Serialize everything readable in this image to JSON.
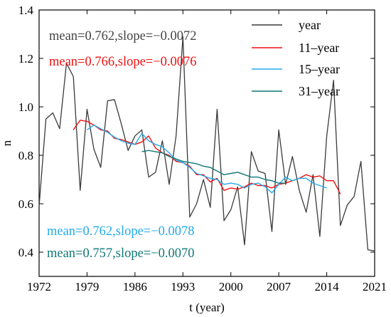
{
  "chart_data": {
    "type": "line",
    "xlabel": "t (year)",
    "ylabel": "n",
    "xlim": [
      1972,
      2021
    ],
    "ylim": [
      0.3,
      1.4
    ],
    "xticks": [
      1972,
      1979,
      1986,
      1993,
      2000,
      2007,
      2014,
      2021
    ],
    "xtick_labels": [
      "1972",
      "1979",
      "1986",
      "1993",
      "2000",
      "2007",
      "2014",
      "2021"
    ],
    "yticks": [
      0.4,
      0.6,
      0.8,
      1.0,
      1.2,
      1.4
    ],
    "ytick_labels": [
      "0.4",
      "0.6",
      "0.8",
      "1.0",
      "1.2",
      "1.4"
    ],
    "grid": false,
    "legend_position": "top-right",
    "series": [
      {
        "name": "year",
        "color": "#3a3a3a",
        "x": [
          1972,
          1973,
          1974,
          1975,
          1976,
          1977,
          1978,
          1979,
          1980,
          1981,
          1982,
          1983,
          1984,
          1985,
          1986,
          1987,
          1988,
          1989,
          1990,
          1991,
          1992,
          1993,
          1994,
          1995,
          1996,
          1997,
          1998,
          1999,
          2000,
          2001,
          2002,
          2003,
          2004,
          2005,
          2006,
          2007,
          2008,
          2009,
          2010,
          2011,
          2012,
          2013,
          2014,
          2015,
          2016,
          2017,
          2018,
          2019,
          2020,
          2021
        ],
        "y": [
          0.59,
          0.95,
          0.975,
          0.91,
          1.18,
          1.125,
          0.655,
          0.99,
          0.825,
          0.75,
          1.025,
          1.03,
          0.93,
          0.82,
          0.88,
          0.905,
          0.71,
          0.73,
          0.86,
          0.68,
          0.88,
          1.29,
          0.545,
          0.6,
          0.7,
          0.585,
          0.99,
          0.53,
          0.575,
          0.67,
          0.43,
          0.815,
          0.735,
          0.725,
          0.485,
          0.905,
          0.68,
          0.795,
          0.655,
          0.565,
          0.72,
          0.465,
          0.88,
          1.11,
          0.51,
          0.595,
          0.63,
          0.775,
          0.41,
          0.405
        ]
      },
      {
        "name": "11–year",
        "color": "#ee1111",
        "x": [
          1977,
          1978,
          1979,
          1980,
          1981,
          1982,
          1983,
          1984,
          1985,
          1986,
          1987,
          1988,
          1989,
          1990,
          1991,
          1992,
          1993,
          1994,
          1995,
          1996,
          1997,
          1998,
          1999,
          2000,
          2001,
          2002,
          2003,
          2004,
          2005,
          2006,
          2007,
          2008,
          2009,
          2010,
          2011,
          2012,
          2013,
          2014,
          2015,
          2016
        ],
        "y": [
          0.905,
          0.945,
          0.94,
          0.925,
          0.905,
          0.9,
          0.87,
          0.865,
          0.855,
          0.845,
          0.855,
          0.88,
          0.83,
          0.81,
          0.8,
          0.775,
          0.77,
          0.755,
          0.72,
          0.72,
          0.69,
          0.705,
          0.655,
          0.665,
          0.66,
          0.67,
          0.685,
          0.675,
          0.675,
          0.665,
          0.68,
          0.685,
          0.695,
          0.705,
          0.72,
          0.71,
          0.715,
          0.695,
          0.695,
          0.64
        ]
      },
      {
        "name": "15–year",
        "color": "#22aaee",
        "x": [
          1979,
          1980,
          1981,
          1982,
          1983,
          1984,
          1985,
          1986,
          1987,
          1988,
          1989,
          1990,
          1991,
          1992,
          1993,
          1994,
          1995,
          1996,
          1997,
          1998,
          1999,
          2000,
          2001,
          2002,
          2003,
          2004,
          2005,
          2006,
          2007,
          2008,
          2009,
          2010,
          2011,
          2012,
          2013,
          2014
        ],
        "y": [
          0.905,
          0.925,
          0.91,
          0.895,
          0.875,
          0.86,
          0.85,
          0.845,
          0.89,
          0.86,
          0.845,
          0.835,
          0.81,
          0.78,
          0.77,
          0.75,
          0.725,
          0.715,
          0.705,
          0.7,
          0.68,
          0.685,
          0.68,
          0.665,
          0.68,
          0.685,
          0.67,
          0.645,
          0.68,
          0.71,
          0.695,
          0.705,
          0.705,
          0.685,
          0.675,
          0.665
        ]
      },
      {
        "name": "31–year",
        "color": "#117777",
        "x": [
          1987,
          1988,
          1989,
          1990,
          1991,
          1992,
          1993,
          1994,
          1995,
          1996,
          1997,
          1998,
          1999,
          2000,
          2001,
          2002,
          2003,
          2004,
          2005,
          2006,
          2007,
          2008
        ],
        "y": [
          0.815,
          0.82,
          0.815,
          0.81,
          0.795,
          0.785,
          0.775,
          0.77,
          0.765,
          0.755,
          0.75,
          0.735,
          0.72,
          0.725,
          0.73,
          0.72,
          0.71,
          0.71,
          0.7,
          0.695,
          0.685,
          0.685
        ]
      }
    ],
    "annotations": [
      {
        "text": "mean=0.762,slope=−0.0072",
        "color": "#444444"
      },
      {
        "text": "mean=0.766,slope=−0.0076",
        "color": "#ee1111"
      },
      {
        "text": "mean=0.762,slope=−0.0078",
        "color": "#22aaee"
      },
      {
        "text": "mean=0.757,slope=−0.0070",
        "color": "#117777"
      }
    ]
  }
}
